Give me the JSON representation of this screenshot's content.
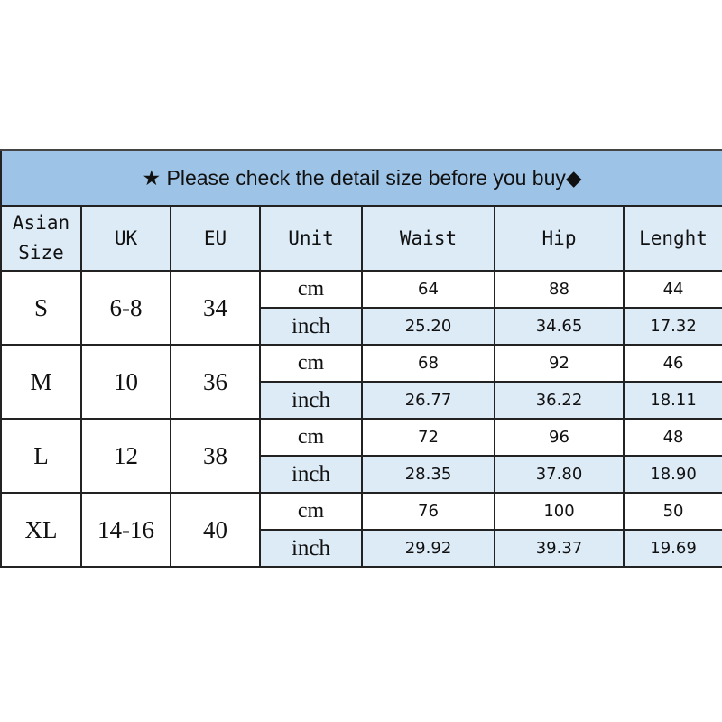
{
  "title": "★ Please check the detail size before you buy◆",
  "headers": [
    "Asian Size",
    "UK",
    "EU",
    "Unit",
    "Waist",
    "Hip",
    "Lenght"
  ],
  "rows": [
    {
      "size": "S",
      "uk": "6-8",
      "eu": "34",
      "cm": {
        "unit": "cm",
        "waist": "64",
        "hip": "88",
        "length": "44"
      },
      "inch": {
        "unit": "inch",
        "waist": "25.20",
        "hip": "34.65",
        "length": "17.32"
      }
    },
    {
      "size": "M",
      "uk": "10",
      "eu": "36",
      "cm": {
        "unit": "cm",
        "waist": "68",
        "hip": "92",
        "length": "46"
      },
      "inch": {
        "unit": "inch",
        "waist": "26.77",
        "hip": "36.22",
        "length": "18.11"
      }
    },
    {
      "size": "L",
      "uk": "12",
      "eu": "38",
      "cm": {
        "unit": "cm",
        "waist": "72",
        "hip": "96",
        "length": "48"
      },
      "inch": {
        "unit": "inch",
        "waist": "28.35",
        "hip": "37.80",
        "length": "18.90"
      }
    },
    {
      "size": "XL",
      "uk": "14-16",
      "eu": "40",
      "cm": {
        "unit": "cm",
        "waist": "76",
        "hip": "100",
        "length": "50"
      },
      "inch": {
        "unit": "inch",
        "waist": "29.92",
        "hip": "39.37",
        "length": "19.69"
      }
    }
  ],
  "colors": {
    "title_bg": "#9dc3e6",
    "header_bg": "#ddebf7",
    "inch_bg": "#ddebf7"
  }
}
